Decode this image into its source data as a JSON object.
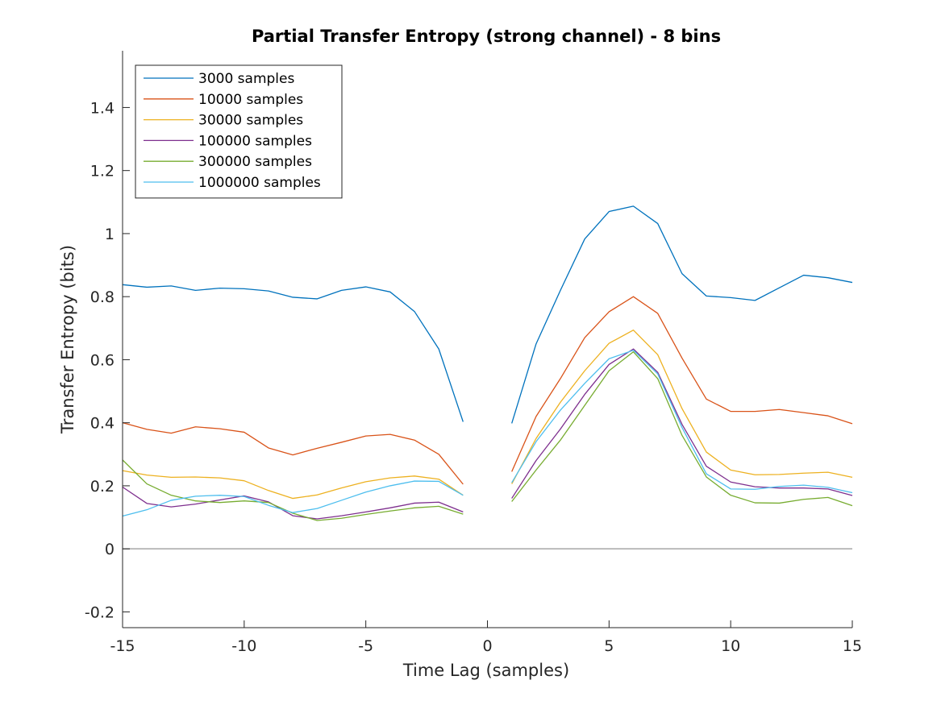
{
  "chart_data": {
    "type": "line",
    "title": "Partial Transfer Entropy (strong channel) - 8 bins",
    "xlabel": "Time Lag (samples)",
    "ylabel": "Transfer Entropy (bits)",
    "xlim": [
      -15,
      15
    ],
    "ylim": [
      -0.25,
      1.58
    ],
    "xticks": [
      -15,
      -10,
      -5,
      0,
      5,
      10,
      15
    ],
    "xtick_labels": [
      "-15",
      "-10",
      "-5",
      "0",
      "5",
      "10",
      "15"
    ],
    "yticks": [
      -0.2,
      0,
      0.2,
      0.4,
      0.6,
      0.8,
      1,
      1.2,
      1.4
    ],
    "ytick_labels": [
      "-0.2",
      "0",
      "0.2",
      "0.4",
      "0.6",
      "0.8",
      "1",
      "1.2",
      "1.4"
    ],
    "grid": false,
    "legend_position": "top-left",
    "zero_line": {
      "y": 0,
      "color": "#a6a6a6"
    },
    "x": [
      -15,
      -14,
      -13,
      -12,
      -11,
      -10,
      -9,
      -8,
      -7,
      -6,
      -5,
      -4,
      -3,
      -2,
      -1,
      0,
      1,
      2,
      3,
      4,
      5,
      6,
      7,
      8,
      9,
      10,
      11,
      12,
      13,
      14,
      15
    ],
    "series": [
      {
        "name": "3000 samples",
        "color": "#0072bd",
        "values": [
          0.838,
          0.83,
          0.834,
          0.82,
          0.827,
          0.825,
          0.818,
          0.798,
          0.793,
          0.82,
          0.831,
          0.815,
          0.753,
          0.634,
          0.403,
          null,
          0.398,
          0.65,
          0.82,
          0.983,
          1.07,
          1.087,
          1.032,
          0.873,
          0.802,
          0.797,
          0.788,
          0.828,
          0.868,
          0.86,
          0.845
        ]
      },
      {
        "name": "10000 samples",
        "color": "#d95319",
        "values": [
          0.4,
          0.379,
          0.367,
          0.387,
          0.381,
          0.37,
          0.32,
          0.298,
          0.319,
          0.338,
          0.358,
          0.363,
          0.345,
          0.3,
          0.205,
          null,
          0.245,
          0.42,
          0.54,
          0.67,
          0.752,
          0.8,
          0.747,
          0.605,
          0.475,
          0.436,
          0.436,
          0.442,
          0.432,
          0.422,
          0.397
        ]
      },
      {
        "name": "30000 samples",
        "color": "#edb120",
        "values": [
          0.248,
          0.234,
          0.227,
          0.228,
          0.225,
          0.216,
          0.185,
          0.16,
          0.171,
          0.193,
          0.213,
          0.225,
          0.231,
          0.221,
          0.17,
          null,
          0.206,
          0.35,
          0.465,
          0.565,
          0.652,
          0.694,
          0.616,
          0.445,
          0.307,
          0.25,
          0.235,
          0.236,
          0.24,
          0.243,
          0.227
        ]
      },
      {
        "name": "100000 samples",
        "color": "#7e2f8e",
        "values": [
          0.196,
          0.144,
          0.133,
          0.142,
          0.155,
          0.168,
          0.149,
          0.105,
          0.095,
          0.105,
          0.117,
          0.13,
          0.145,
          0.148,
          0.117,
          null,
          0.16,
          0.28,
          0.38,
          0.49,
          0.585,
          0.634,
          0.56,
          0.395,
          0.262,
          0.212,
          0.197,
          0.193,
          0.193,
          0.19,
          0.169
        ]
      },
      {
        "name": "300000 samples",
        "color": "#77ac30",
        "values": [
          0.282,
          0.206,
          0.17,
          0.152,
          0.147,
          0.152,
          0.147,
          0.113,
          0.09,
          0.097,
          0.109,
          0.12,
          0.13,
          0.135,
          0.11,
          null,
          0.15,
          0.25,
          0.345,
          0.455,
          0.565,
          0.625,
          0.54,
          0.36,
          0.228,
          0.17,
          0.146,
          0.145,
          0.157,
          0.163,
          0.137
        ]
      },
      {
        "name": "1000000 samples",
        "color": "#4dbeee",
        "values": [
          0.104,
          0.124,
          0.154,
          0.167,
          0.17,
          0.166,
          0.138,
          0.115,
          0.128,
          0.154,
          0.18,
          0.2,
          0.215,
          0.214,
          0.17,
          null,
          0.21,
          0.34,
          0.44,
          0.525,
          0.603,
          0.63,
          0.555,
          0.385,
          0.238,
          0.19,
          0.189,
          0.198,
          0.202,
          0.195,
          0.178
        ]
      }
    ]
  }
}
